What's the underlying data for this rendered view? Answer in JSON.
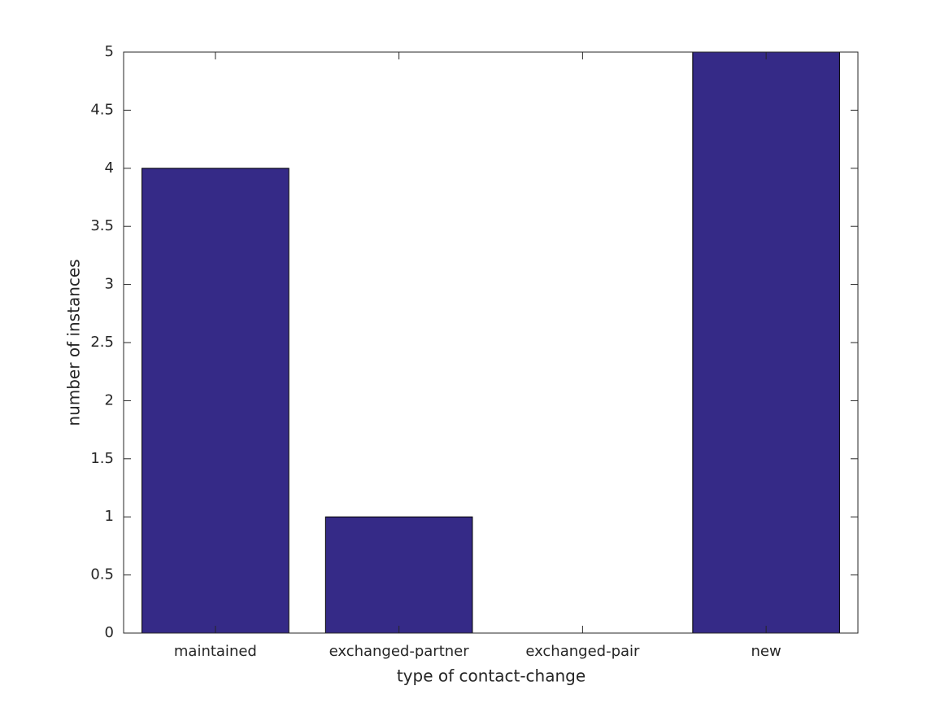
{
  "chart_data": {
    "type": "bar",
    "x_label": "type of contact-change",
    "y_label": "number of instances",
    "categories": [
      "maintained",
      "exchanged-partner",
      "exchanged-pair",
      "new"
    ],
    "values": [
      4,
      1,
      0,
      5
    ],
    "color": "#352a87",
    "ylim": [
      0,
      5
    ],
    "yticks": [
      0,
      0.5,
      1,
      1.5,
      2,
      2.5,
      3,
      3.5,
      4,
      4.5,
      5
    ],
    "grid": false
  }
}
